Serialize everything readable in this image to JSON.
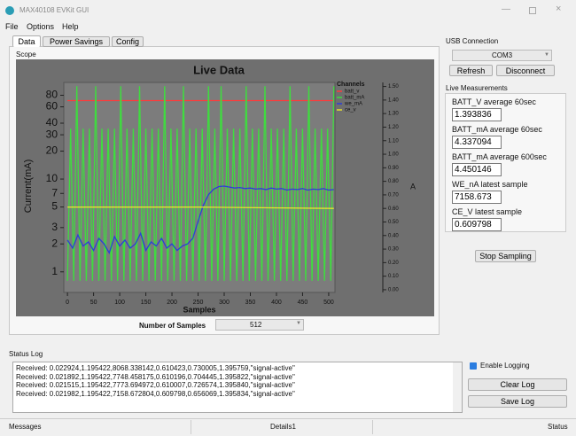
{
  "window": {
    "title": "MAX40108 EVKit GUI"
  },
  "menu": [
    "File",
    "Options",
    "Help"
  ],
  "tabs": [
    "Data",
    "Power Savings",
    "Config"
  ],
  "scope": {
    "label": "Scope",
    "samples_label": "Number of Samples",
    "samples_value": 512,
    "chart_data": {
      "type": "line",
      "title": "Live Data",
      "legend_title": "Channels",
      "legend_position": "upper right",
      "x_label": "Samples",
      "y_label": "Current(mA)",
      "y2_label": "A",
      "log_y": true,
      "grid": false,
      "xlim": [
        -7,
        512
      ],
      "xticks": [
        0,
        50,
        100,
        150,
        200,
        250,
        300,
        350,
        400,
        450,
        500
      ],
      "ylim": [
        0.6,
        110
      ],
      "yticks": [
        1,
        2,
        3,
        5,
        7,
        10,
        20,
        30,
        40,
        60,
        80
      ],
      "y2lim": [
        -0.02,
        1.53
      ],
      "y2ticks": [
        {
          "value": 0,
          "label": "0.00"
        },
        {
          "value": 0.1,
          "label": "0.10"
        },
        {
          "value": 0.2,
          "label": "0.20"
        },
        {
          "value": 0.3,
          "label": "0.30"
        },
        {
          "value": 0.4,
          "label": "0.40"
        },
        {
          "value": 0.5,
          "label": "0.50"
        },
        {
          "value": 0.6,
          "label": "0.60"
        },
        {
          "value": 0.7,
          "label": "0.70"
        },
        {
          "value": 0.8,
          "label": "0.80"
        },
        {
          "value": 0.9,
          "label": "0.90"
        },
        {
          "value": 1.0,
          "label": "1.00"
        },
        {
          "value": 1.1,
          "label": "1.10"
        },
        {
          "value": 1.2,
          "label": "1.20"
        },
        {
          "value": 1.3,
          "label": "1.30"
        },
        {
          "value": 1.4,
          "label": "1.40"
        },
        {
          "value": 1.5,
          "label": "1.50"
        }
      ],
      "series": [
        {
          "name": "batt_v",
          "color": "#ff3b3b",
          "axis": "y2",
          "x": [
            0,
            510
          ],
          "values": [
            1.396,
            1.396
          ]
        },
        {
          "name": "batt_mA",
          "color": "#3fdc3f",
          "x": [
            0,
            6,
            12,
            18,
            24,
            30,
            36,
            42,
            48,
            54,
            60,
            66,
            72,
            78,
            84,
            90,
            96,
            102,
            108,
            114,
            120,
            126,
            132,
            138,
            144,
            150,
            156,
            162,
            168,
            174,
            180,
            186,
            192,
            198,
            204,
            210,
            216,
            222,
            228,
            234,
            240,
            246,
            252,
            258,
            264,
            270,
            276,
            282,
            288,
            294,
            300,
            306,
            312,
            318,
            324,
            330,
            336,
            342,
            348,
            354,
            360,
            366,
            372,
            378,
            384,
            390,
            396,
            402,
            408,
            414,
            420,
            426,
            432,
            438,
            444,
            450,
            456,
            462,
            468,
            474,
            480,
            486,
            492,
            498,
            504,
            510
          ],
          "values": [
            0.8,
            35,
            0.8,
            100,
            0.8,
            35,
            0.8,
            35,
            0.8,
            100,
            0.8,
            35,
            0.8,
            35,
            0.8,
            35,
            0.8,
            100,
            0.8,
            35,
            0.8,
            35,
            0.8,
            100,
            0.8,
            35,
            0.8,
            35,
            0.8,
            35,
            0.8,
            100,
            0.8,
            35,
            0.8,
            35,
            0.8,
            100,
            0.8,
            35,
            0.8,
            35,
            0.8,
            35,
            0.8,
            100,
            0.8,
            35,
            0.8,
            100,
            0.8,
            35,
            0.8,
            35,
            0.8,
            35,
            0.8,
            100,
            0.8,
            35,
            0.8,
            35,
            0.8,
            100,
            0.8,
            35,
            0.8,
            35,
            0.8,
            35,
            0.8,
            100,
            0.8,
            35,
            0.8,
            35,
            0.8,
            100,
            0.8,
            35,
            0.8,
            35,
            0.8,
            35,
            0.8,
            100
          ]
        },
        {
          "name": "we_mA",
          "color": "#2b3fd8",
          "x": [
            0,
            10,
            20,
            30,
            40,
            50,
            60,
            70,
            80,
            90,
            100,
            110,
            120,
            130,
            140,
            150,
            160,
            170,
            180,
            190,
            200,
            210,
            220,
            230,
            240,
            250,
            260,
            270,
            280,
            290,
            300,
            310,
            320,
            330,
            340,
            350,
            360,
            370,
            380,
            390,
            400,
            410,
            420,
            430,
            440,
            450,
            460,
            470,
            480,
            490,
            500,
            510
          ],
          "values": [
            2.2,
            1.8,
            2.5,
            1.9,
            2.1,
            1.7,
            2.3,
            2.0,
            1.6,
            2.4,
            1.9,
            2.2,
            1.8,
            2.0,
            2.6,
            1.7,
            2.1,
            1.9,
            2.3,
            1.8,
            2.0,
            1.7,
            1.9,
            2.0,
            2.3,
            3.5,
            5.2,
            6.8,
            7.8,
            8.3,
            8.4,
            8.2,
            8.0,
            8.1,
            7.9,
            8.0,
            7.8,
            7.9,
            7.7,
            8.0,
            7.8,
            7.9,
            7.6,
            7.8,
            7.7,
            7.9,
            7.6,
            7.8,
            7.7,
            7.9,
            7.6,
            7.7
          ]
        },
        {
          "name": "ce_v",
          "color": "#e6e030",
          "axis": "y2",
          "x": [
            0,
            250,
            510
          ],
          "values": [
            0.61,
            0.61,
            0.6
          ]
        }
      ]
    }
  },
  "usb": {
    "label": "USB Connection",
    "port": "COM3",
    "refresh": "Refresh",
    "disconnect": "Disconnect"
  },
  "live": {
    "label": "Live Measurements",
    "items": [
      {
        "name": "BATT_V average 60sec",
        "value": 1.393836
      },
      {
        "name": "BATT_mA average 60sec",
        "value": 4.337094
      },
      {
        "name": "BATT_mA average 600sec",
        "value": 4.450146
      },
      {
        "name": "WE_nA latest sample",
        "value": 7158.673
      },
      {
        "name": "CE_V latest sample",
        "value": 0.609798
      }
    ]
  },
  "stop": "Stop Sampling",
  "log": {
    "label": "Status Log",
    "lines": [
      "Received: 0.022924,1.195422,8068.338142,0.610423,0.730005,1.395759,\"signal-active\"",
      "Received: 0.021892,1.195422,7748.458175,0.610196,0.704445,1.395822,\"signal-active\"",
      "Received: 0.021515,1.195422,7773.694972,0.610007,0.726574,1.395840,\"signal-active\"",
      "Received: 0.021982,1.195422,7158.672804,0.609798,0.656069,1.395834,\"signal-active\""
    ],
    "enable": "Enable Logging",
    "clear": "Clear Log",
    "save": "Save Log"
  },
  "statusbar": [
    "Messages",
    "Details1",
    "Status"
  ]
}
